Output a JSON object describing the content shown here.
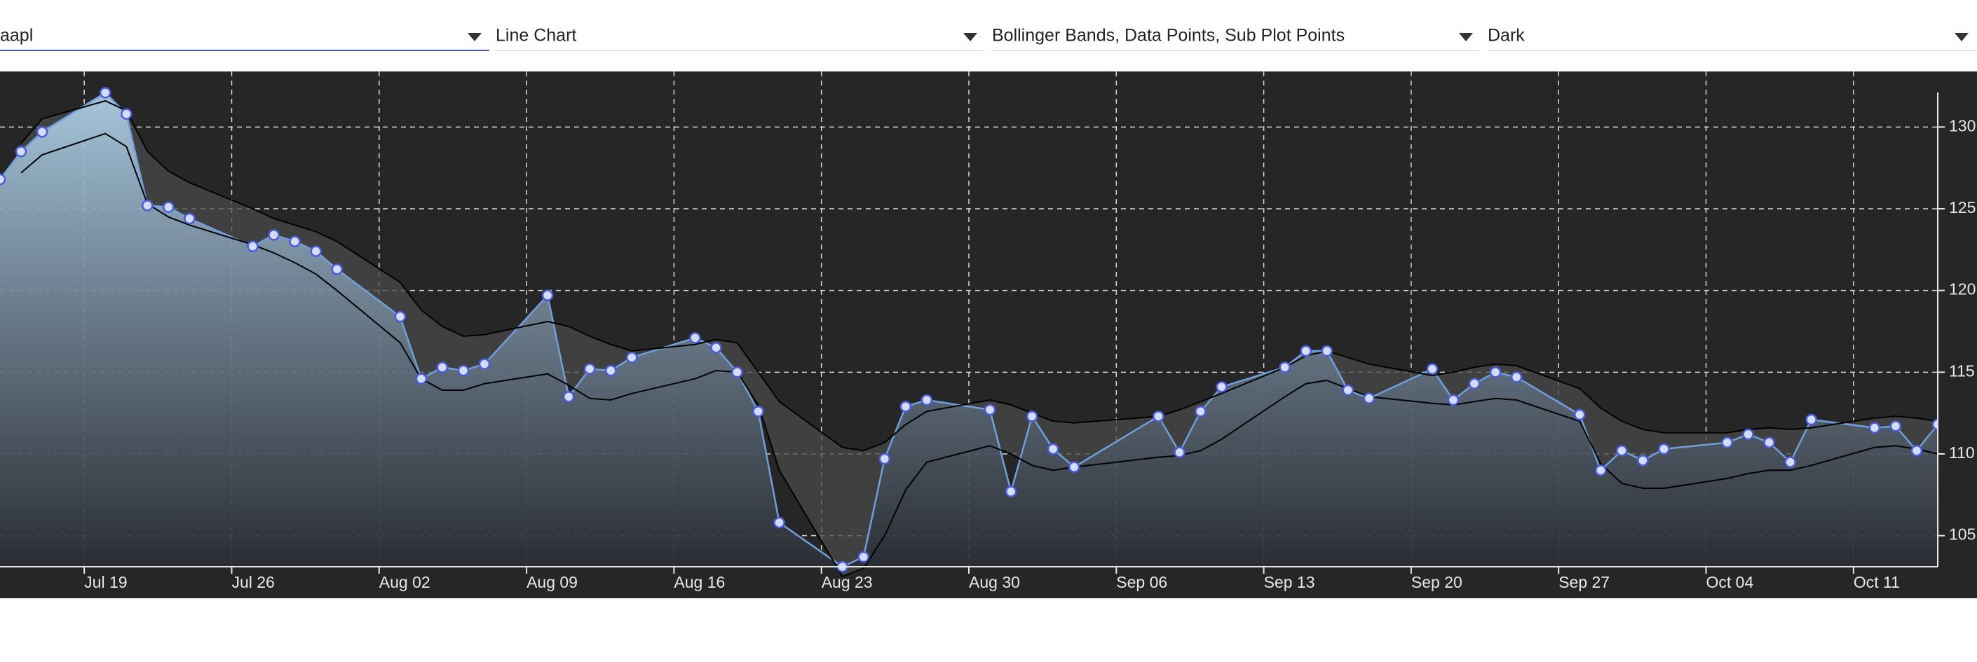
{
  "controls": {
    "symbol": "aapl",
    "chart_type": "Line Chart",
    "overlays": "Bollinger Bands, Data Points, Sub Plot Points",
    "theme": "Dark"
  },
  "chart_data": {
    "type": "area",
    "x": [
      "Jul 15",
      "Jul 16",
      "Jul 17",
      "Jul 20",
      "Jul 21",
      "Jul 22",
      "Jul 23",
      "Jul 24",
      "Jul 27",
      "Jul 28",
      "Jul 29",
      "Jul 30",
      "Jul 31",
      "Aug 03",
      "Aug 04",
      "Aug 05",
      "Aug 06",
      "Aug 07",
      "Aug 10",
      "Aug 11",
      "Aug 12",
      "Aug 13",
      "Aug 14",
      "Aug 17",
      "Aug 18",
      "Aug 19",
      "Aug 20",
      "Aug 21",
      "Aug 24",
      "Aug 25",
      "Aug 26",
      "Aug 27",
      "Aug 28",
      "Aug 31",
      "Sep 01",
      "Sep 02",
      "Sep 03",
      "Sep 04",
      "Sep 08",
      "Sep 09",
      "Sep 10",
      "Sep 11",
      "Sep 14",
      "Sep 15",
      "Sep 16",
      "Sep 17",
      "Sep 18",
      "Sep 21",
      "Sep 22",
      "Sep 23",
      "Sep 24",
      "Sep 25",
      "Sep 28",
      "Sep 29",
      "Sep 30",
      "Oct 01",
      "Oct 02",
      "Oct 05",
      "Oct 06",
      "Oct 07",
      "Oct 08",
      "Oct 09",
      "Oct 12",
      "Oct 13",
      "Oct 14",
      "Oct 15"
    ],
    "series": [
      {
        "color": "#6f9fdc",
        "values": [
          126.8,
          128.5,
          129.7,
          132.1,
          130.8,
          125.2,
          125.1,
          124.4,
          122.7,
          123.4,
          123.0,
          122.4,
          121.3,
          118.4,
          114.6,
          115.3,
          115.1,
          115.5,
          119.7,
          113.5,
          115.2,
          115.1,
          115.9,
          117.1,
          116.5,
          115.0,
          112.6,
          105.8,
          103.1,
          103.7,
          109.7,
          112.9,
          113.3,
          112.7,
          107.7,
          112.3,
          110.3,
          109.2,
          112.3,
          110.1,
          112.6,
          114.1,
          115.3,
          116.3,
          116.3,
          113.9,
          113.4,
          115.2,
          113.3,
          114.3,
          115.0,
          114.7,
          112.4,
          109.0,
          110.2,
          109.6,
          110.3,
          110.7,
          111.2,
          110.7,
          109.5,
          112.1,
          111.6,
          111.7,
          110.2,
          111.8
        ]
      }
    ],
    "bollinger_bands": {
      "color": "#000000",
      "upper": [
        null,
        129.0,
        130.5,
        131.6,
        131.0,
        128.5,
        127.3,
        126.6,
        125.0,
        124.4,
        124.0,
        123.6,
        123.0,
        120.5,
        118.8,
        117.8,
        117.2,
        117.3,
        118.1,
        117.8,
        117.2,
        116.7,
        116.3,
        116.7,
        117.0,
        116.8,
        115.0,
        113.2,
        110.4,
        110.2,
        110.7,
        111.8,
        112.6,
        113.3,
        113.0,
        112.5,
        112.0,
        111.9,
        112.3,
        112.7,
        113.2,
        113.7,
        115.3,
        116.0,
        116.3,
        115.9,
        115.5,
        114.8,
        115.0,
        115.3,
        115.5,
        115.4,
        114.0,
        112.8,
        112.0,
        111.5,
        111.3,
        111.3,
        111.5,
        111.6,
        111.5,
        111.6,
        112.2,
        112.3,
        112.2,
        112.0
      ],
      "lower": [
        null,
        127.2,
        128.3,
        129.6,
        128.8,
        125.3,
        124.5,
        124.0,
        122.8,
        122.3,
        121.7,
        121.0,
        120.0,
        116.8,
        114.6,
        113.9,
        113.9,
        114.3,
        114.9,
        114.2,
        113.4,
        113.3,
        113.7,
        114.6,
        115.1,
        115.0,
        113.0,
        109.0,
        102.5,
        103.0,
        105.0,
        107.8,
        109.5,
        110.5,
        110.0,
        109.3,
        109.0,
        109.2,
        109.8,
        109.9,
        110.2,
        110.9,
        113.5,
        114.3,
        114.5,
        114.0,
        113.5,
        113.1,
        113.0,
        113.2,
        113.4,
        113.3,
        112.0,
        109.4,
        108.2,
        107.9,
        107.9,
        108.5,
        108.8,
        109.0,
        109.0,
        109.3,
        110.4,
        110.5,
        110.3,
        110.0
      ]
    },
    "xlim": [
      "Jul 15",
      "Oct 15"
    ],
    "xticks": [
      "Jul 19",
      "Jul 26",
      "Aug 02",
      "Aug 09",
      "Aug 16",
      "Aug 23",
      "Aug 30",
      "Sep 06",
      "Sep 13",
      "Sep 20",
      "Sep 27",
      "Oct 04",
      "Oct 11"
    ],
    "ylim": [
      103.1,
      133.4
    ],
    "yticks": [
      105,
      110,
      115,
      120,
      125,
      130
    ],
    "grid": true
  }
}
